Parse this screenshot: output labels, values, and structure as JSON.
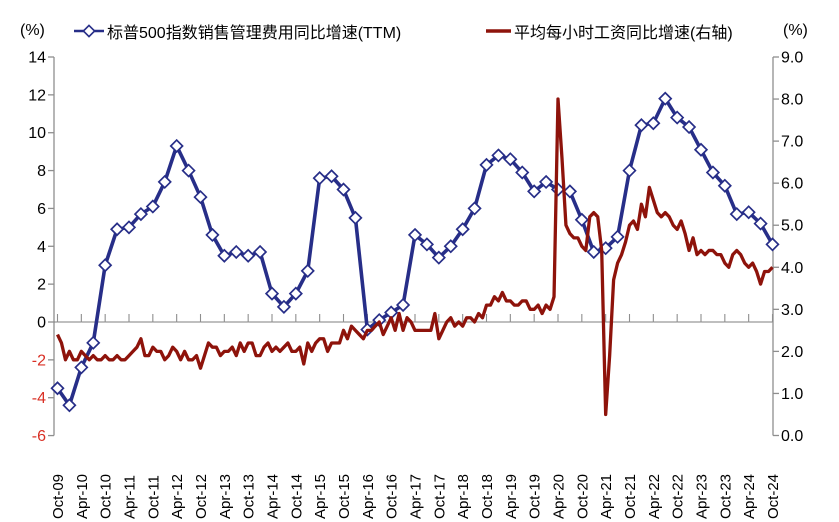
{
  "chart_data": {
    "type": "line",
    "title": "",
    "left_axis": {
      "label": "(%)",
      "min": -6,
      "max": 14,
      "tick_step": 2,
      "ticks": [
        "14",
        "12",
        "10",
        "8",
        "6",
        "4",
        "2",
        "0",
        "-2",
        "-4",
        "-6"
      ],
      "tick_color": "#000000",
      "negative_tick_color": "#D93025"
    },
    "right_axis": {
      "label": "(%)",
      "min": 0,
      "max": 9,
      "ticks": [
        "9.0",
        "8.0",
        "7.0",
        "6.0",
        "5.0",
        "4.0",
        "3.0",
        "2.0",
        "1.0",
        "0.0"
      ],
      "tick_color": "#000000"
    },
    "x_axis": {
      "start": "Oct-09",
      "end": "Oct-24",
      "months_total": 180,
      "tick_every_months": 6,
      "tick_labels": [
        "Oct-09",
        "Apr-10",
        "Oct-10",
        "Apr-11",
        "Oct-11",
        "Apr-12",
        "Oct-12",
        "Apr-13",
        "Oct-13",
        "Apr-14",
        "Oct-14",
        "Apr-15",
        "Oct-15",
        "Apr-16",
        "Oct-16",
        "Apr-17",
        "Oct-17",
        "Apr-18",
        "Oct-18",
        "Apr-19",
        "Oct-19",
        "Apr-20",
        "Oct-20",
        "Apr-21",
        "Oct-21",
        "Apr-22",
        "Oct-22",
        "Apr-23",
        "Oct-23",
        "Apr-24",
        "Oct-24"
      ]
    },
    "grid": {
      "zero_line": true,
      "zero_line_color": "#7F7F7F",
      "axis_color": "#8E8E8E"
    },
    "legend_position": "top",
    "series": [
      {
        "name": "标普500指数销售管理费用同比增速(TTM)",
        "axis": "left",
        "color": "#272E88",
        "marker": "diamond",
        "marker_fill": "#FFFFFF",
        "month_interval": 3,
        "values": [
          -3.5,
          -4.4,
          -2.4,
          -1.1,
          3.0,
          4.9,
          5.0,
          5.7,
          6.1,
          7.4,
          9.3,
          8.0,
          6.6,
          4.6,
          3.5,
          3.7,
          3.5,
          3.7,
          1.5,
          0.8,
          1.5,
          2.7,
          7.6,
          7.7,
          7.0,
          5.5,
          -0.4,
          0.1,
          0.5,
          0.9,
          4.6,
          4.1,
          3.4,
          4.0,
          4.9,
          6.0,
          8.3,
          8.8,
          8.6,
          7.9,
          6.9,
          7.4,
          7.0,
          6.9,
          5.4,
          3.7,
          3.9,
          4.5,
          8.0,
          10.4,
          10.5,
          11.8,
          10.8,
          10.3,
          9.1,
          7.9,
          7.2,
          5.7,
          5.8,
          5.2,
          4.1
        ]
      },
      {
        "name": "平均每小时工资同比增速(右轴)",
        "axis": "right",
        "color": "#8E130B",
        "marker": "none",
        "month_interval": 1,
        "values": [
          2.4,
          2.2,
          1.8,
          2.0,
          1.8,
          1.8,
          2.0,
          1.9,
          1.8,
          1.9,
          1.8,
          1.8,
          1.9,
          1.8,
          1.8,
          1.9,
          1.8,
          1.8,
          1.9,
          2.0,
          2.1,
          2.3,
          1.9,
          1.9,
          2.1,
          2.0,
          2.0,
          1.8,
          1.9,
          2.1,
          2.0,
          1.8,
          2.0,
          1.8,
          1.8,
          1.9,
          1.6,
          1.9,
          2.2,
          2.1,
          2.1,
          1.9,
          2.0,
          2.0,
          2.1,
          1.9,
          2.2,
          2.0,
          2.2,
          2.2,
          1.9,
          1.9,
          2.1,
          2.2,
          2.0,
          2.1,
          2.0,
          2.1,
          2.2,
          2.0,
          2.0,
          2.1,
          1.7,
          2.2,
          2.0,
          2.2,
          2.3,
          2.3,
          2.0,
          2.2,
          2.2,
          2.2,
          2.5,
          2.3,
          2.6,
          2.5,
          2.4,
          2.3,
          2.5,
          2.5,
          2.6,
          2.7,
          2.4,
          2.6,
          2.8,
          2.5,
          2.9,
          2.5,
          2.8,
          2.7,
          2.5,
          2.5,
          2.5,
          2.5,
          2.5,
          2.9,
          2.3,
          2.5,
          2.7,
          2.8,
          2.6,
          2.7,
          2.6,
          2.8,
          2.8,
          2.7,
          2.9,
          2.8,
          3.1,
          3.1,
          3.3,
          3.2,
          3.4,
          3.2,
          3.2,
          3.1,
          3.1,
          3.2,
          3.2,
          3.0,
          3.0,
          3.1,
          2.9,
          3.1,
          3.0,
          3.3,
          8.0,
          6.6,
          5.0,
          4.8,
          4.7,
          4.7,
          4.5,
          4.4,
          5.2,
          5.3,
          5.2,
          4.4,
          0.5,
          1.9,
          3.7,
          4.1,
          4.3,
          4.6,
          5.0,
          5.1,
          4.9,
          5.5,
          5.2,
          5.9,
          5.6,
          5.3,
          5.2,
          5.3,
          5.2,
          5.0,
          4.9,
          5.1,
          4.8,
          4.4,
          4.7,
          4.3,
          4.4,
          4.3,
          4.4,
          4.4,
          4.3,
          4.3,
          4.1,
          4.0,
          4.3,
          4.4,
          4.3,
          4.1,
          4.0,
          4.1,
          3.9,
          3.6,
          3.9,
          3.9,
          4.0
        ]
      }
    ]
  }
}
